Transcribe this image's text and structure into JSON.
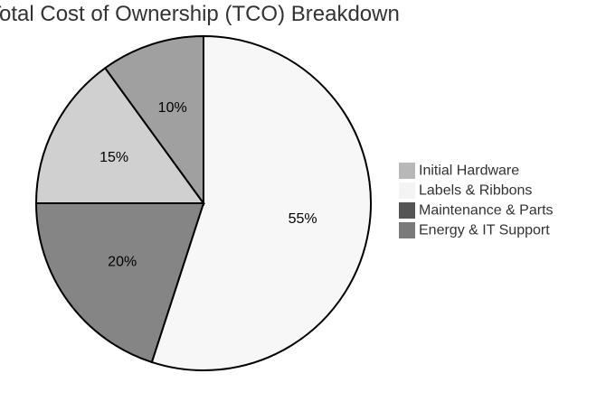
{
  "chart_data": {
    "type": "pie",
    "title": "Total Cost of Ownership (TCO) Breakdown",
    "categories": [
      "Initial Hardware",
      "Labels & Ribbons",
      "Maintenance & Parts",
      "Energy & IT Support"
    ],
    "values": [
      10,
      55,
      20,
      15
    ],
    "labels": [
      "10%",
      "55%",
      "20%",
      "15%"
    ],
    "slices": [
      {
        "name": "Initial Hardware",
        "value": 10,
        "label": "10%",
        "color": "#a0a0a0"
      },
      {
        "name": "Labels & Ribbons",
        "value": 55,
        "label": "55%",
        "color": "#f7f7f7"
      },
      {
        "name": "Maintenance & Parts",
        "value": 20,
        "label": "20%",
        "color": "#858585"
      },
      {
        "name": "Energy & IT Support",
        "value": 15,
        "label": "15%",
        "color": "#d0d0d0"
      }
    ],
    "legend": {
      "position": "right",
      "entries": [
        {
          "label": "Initial Hardware",
          "color": "#b8b8b8"
        },
        {
          "label": "Labels & Ribbons",
          "color": "#f4f4f4"
        },
        {
          "label": "Maintenance & Parts",
          "color": "#555555"
        },
        {
          "label": "Energy & IT Support",
          "color": "#7a7a7a"
        }
      ]
    },
    "grid": false
  }
}
